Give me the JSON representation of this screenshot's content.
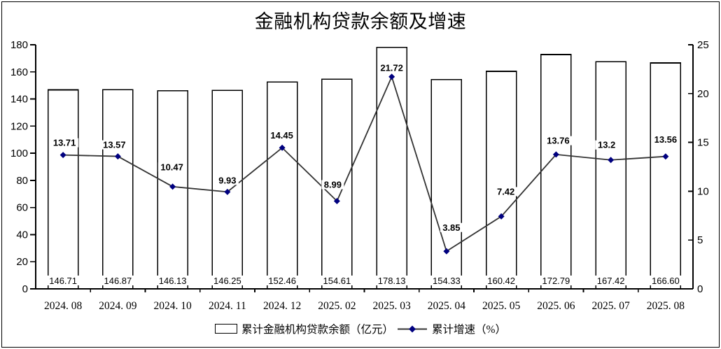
{
  "title": "金融机构贷款余额及增速",
  "legend": {
    "bar_label": "累计金融机构贷款余额（亿元）",
    "line_label": "累计增速（%）"
  },
  "colors": {
    "text": "#000000",
    "bar_fill": "#ffffff",
    "bar_stroke": "#000000",
    "line": "#333333",
    "marker": "#00007f",
    "axis": "#000000",
    "label_bg": "#ffffff"
  },
  "chart_data": {
    "type": "bar+line",
    "title": "金融机构贷款余额及增速",
    "categories": [
      "2024.08",
      "2024.09",
      "2024.10",
      "2024.11",
      "2024.12",
      "2025.02",
      "2025.03",
      "2025.04",
      "2025.05",
      "2025.06",
      "2025.07",
      "2025.08"
    ],
    "series": [
      {
        "name": "累计金融机构贷款余额（亿元）",
        "type": "bar",
        "axis": "left",
        "values": [
          146.71,
          146.87,
          146.13,
          146.25,
          152.46,
          154.61,
          178.13,
          154.33,
          160.42,
          172.79,
          167.42,
          166.6
        ],
        "labels": [
          "146.71",
          "146.87",
          "146.13",
          "146.25",
          "152.46",
          "154.61",
          "178.13",
          "154.33",
          "160.42",
          "172.79",
          "167.42",
          "166.60"
        ]
      },
      {
        "name": "累计增速（%）",
        "type": "line",
        "axis": "right",
        "values": [
          13.71,
          13.57,
          10.47,
          9.93,
          14.45,
          8.99,
          21.72,
          3.85,
          7.42,
          13.76,
          13.2,
          13.56
        ],
        "labels": [
          "13.71",
          "13.57",
          "10.47",
          "9.93",
          "14.45",
          "8.99",
          "21.72",
          "3.85",
          "7.42",
          "13.76",
          "13.2",
          "13.56"
        ]
      }
    ],
    "left_axis": {
      "min": 0,
      "max": 180,
      "step": 20
    },
    "right_axis": {
      "min": 0,
      "max": 25,
      "step": 5
    },
    "grid": false,
    "legend_position": "bottom"
  }
}
